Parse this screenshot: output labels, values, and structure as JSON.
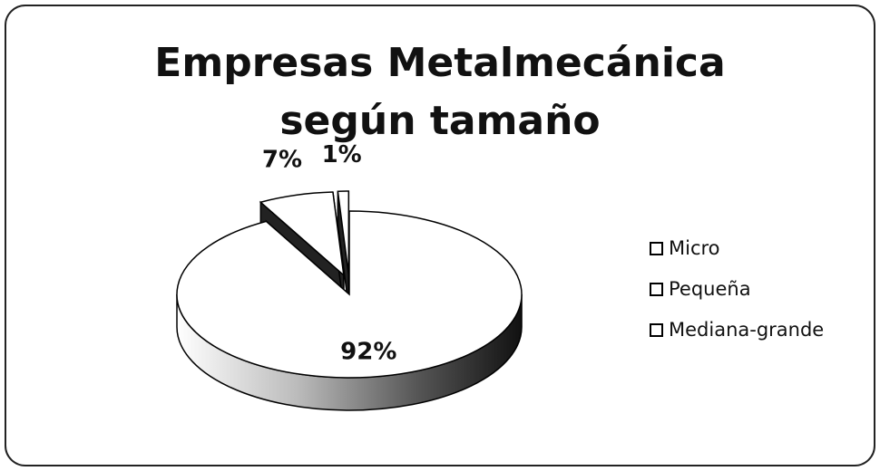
{
  "chart_data": {
    "type": "pie3d",
    "title": "Empresas Metalmecánica según tamaño",
    "categories": [
      "Micro",
      "Pequeña",
      "Mediana-grande"
    ],
    "values": [
      92,
      7,
      1
    ],
    "value_labels": [
      "92%",
      "7%",
      "1%"
    ],
    "colors": [
      "#ffffff",
      "#ffffff",
      "#ffffff"
    ],
    "legend": "right"
  }
}
